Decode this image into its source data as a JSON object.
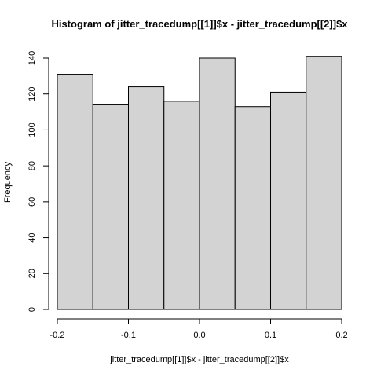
{
  "chart_data": {
    "type": "bar",
    "title": "Histogram of jitter_tracedump[[1]]$x - jitter_tracedump[[2]]$x",
    "xlabel": "jitter_tracedump[[1]]$x - jitter_tracedump[[2]]$x",
    "ylabel": "Frequency",
    "bins": [
      {
        "start": -0.2,
        "end": -0.15,
        "value": 131
      },
      {
        "start": -0.15,
        "end": -0.1,
        "value": 114
      },
      {
        "start": -0.1,
        "end": -0.05,
        "value": 124
      },
      {
        "start": -0.05,
        "end": 0.0,
        "value": 116
      },
      {
        "start": 0.0,
        "end": 0.05,
        "value": 140
      },
      {
        "start": 0.05,
        "end": 0.1,
        "value": 113
      },
      {
        "start": 0.1,
        "end": 0.15,
        "value": 121
      },
      {
        "start": 0.15,
        "end": 0.2,
        "value": 141
      }
    ],
    "xlim": [
      -0.2,
      0.2
    ],
    "ylim": [
      0,
      140
    ],
    "xticks": [
      -0.2,
      -0.1,
      0.0,
      0.1,
      0.2
    ],
    "xtick_labels": [
      "-0.2",
      "-0.1",
      "0.0",
      "0.1",
      "0.2"
    ],
    "yticks": [
      0,
      20,
      40,
      60,
      80,
      100,
      120,
      140
    ],
    "ytick_labels": [
      "0",
      "20",
      "40",
      "60",
      "80",
      "100",
      "120",
      "140"
    ],
    "grid": false,
    "bar_fill": "#d3d3d3",
    "bar_stroke": "#000000"
  }
}
